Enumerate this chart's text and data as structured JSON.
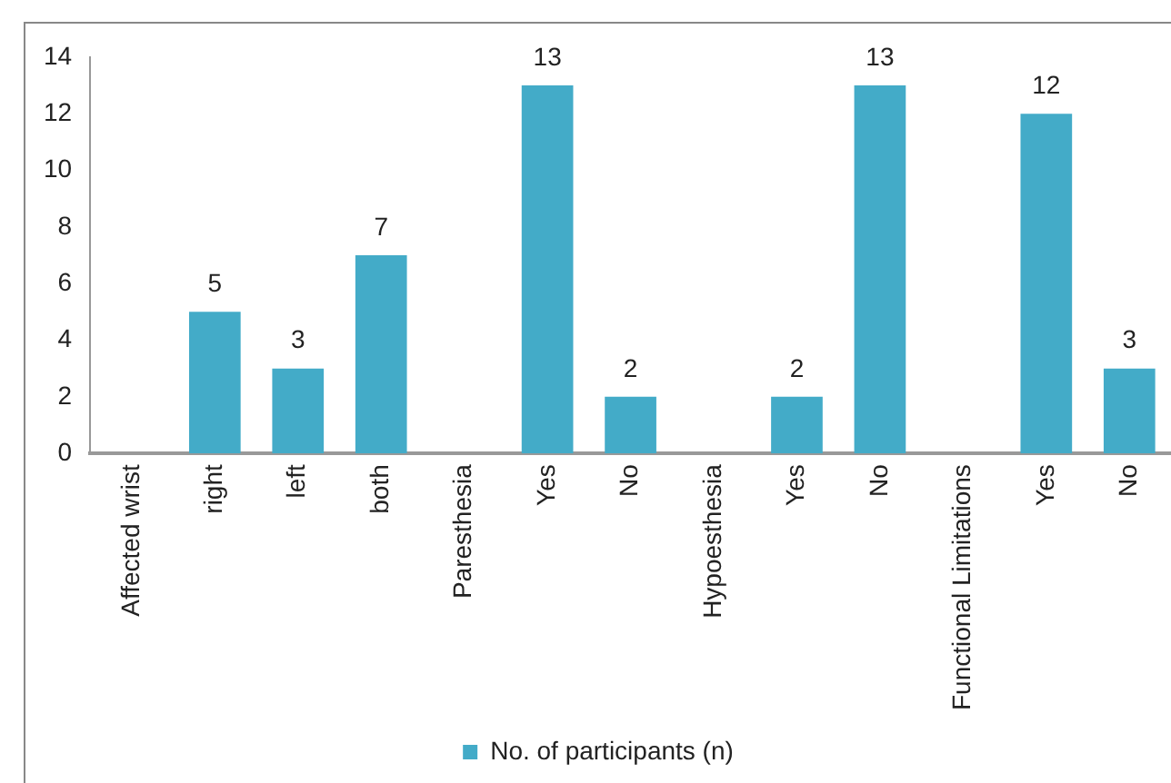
{
  "chart_data": {
    "type": "bar",
    "categories": [
      "Affected wrist",
      "right",
      "left",
      "both",
      "Paresthesia",
      "Yes",
      "No",
      "Hypoesthesia",
      "Yes",
      "No",
      "Functional Limitations",
      "Yes",
      "No"
    ],
    "series": [
      {
        "name": "No. of participants (n)",
        "color": "#43abc8",
        "values": [
          null,
          5,
          3,
          7,
          null,
          13,
          2,
          null,
          2,
          13,
          null,
          12,
          3
        ]
      }
    ],
    "ylim": [
      0,
      14
    ],
    "yticks": [
      0,
      2,
      4,
      6,
      8,
      10,
      12,
      14
    ],
    "grid": false,
    "legend": "bottom",
    "data_labels": true
  }
}
